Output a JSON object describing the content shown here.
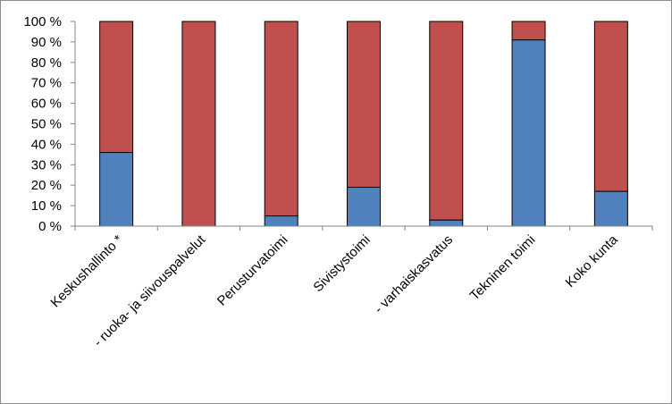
{
  "chart_data": {
    "type": "bar",
    "stacked": true,
    "percent": true,
    "categories": [
      "Keskushallinto *",
      "- ruoka- ja siivouspalvelut",
      "Perusturvatoimi",
      "Sivistystoimi",
      "- varhaiskasvatus",
      "Tekninen toimi",
      "Koko kunta"
    ],
    "series": [
      {
        "color": "#4f81bd",
        "values": [
          36,
          0,
          5,
          19,
          3,
          91,
          17
        ]
      },
      {
        "color": "#c0504d",
        "values": [
          64,
          100,
          95,
          81,
          97,
          9,
          83
        ]
      }
    ],
    "ylim": [
      0,
      100
    ],
    "yticks": [
      "0 %",
      "10 %",
      "20 %",
      "30 %",
      "40 %",
      "50 %",
      "60 %",
      "70 %",
      "80 %",
      "90 %",
      "100 %"
    ],
    "grid": false,
    "legend": "none"
  }
}
